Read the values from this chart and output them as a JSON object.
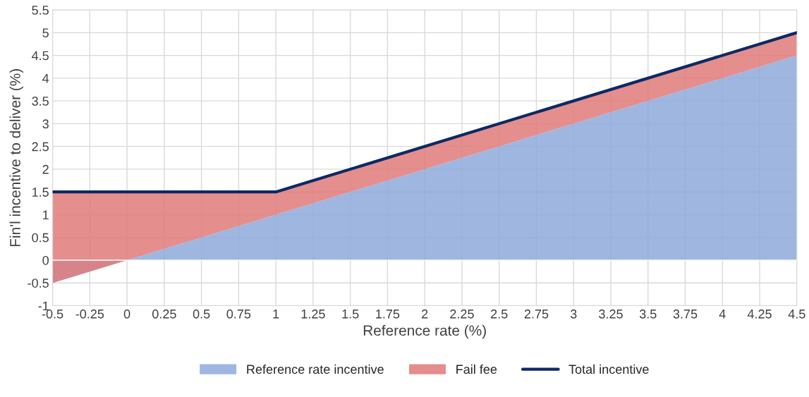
{
  "chart_data": {
    "type": "area",
    "stacked": true,
    "xlabel": "Reference rate (%)",
    "ylabel": "Fin'l incentive to deliver (%)",
    "x": [
      -0.5,
      0,
      1,
      4.5
    ],
    "series": [
      {
        "name": "Reference rate incentive",
        "color": "#8eaadb",
        "values": [
          -0.5,
          0,
          1,
          4.5
        ]
      },
      {
        "name": "Fail fee",
        "color": "#e07a7a",
        "values": [
          2,
          1.5,
          0.5,
          0.5
        ]
      },
      {
        "name": "Total incentive",
        "type": "line",
        "color": "#0d2a63",
        "values": [
          1.5,
          1.5,
          1.5,
          5
        ]
      }
    ],
    "xlim": [
      -0.5,
      4.5
    ],
    "xticks": [
      -0.5,
      -0.25,
      0,
      0.25,
      0.5,
      0.75,
      1,
      1.25,
      1.5,
      1.75,
      2,
      2.25,
      2.5,
      2.75,
      3,
      3.25,
      3.5,
      3.75,
      4,
      4.25,
      4.5
    ],
    "ylim": [
      -1,
      5.5
    ],
    "yticks": [
      -1,
      -0.5,
      0,
      0.5,
      1,
      1.5,
      2,
      2.5,
      3,
      3.5,
      4,
      4.5,
      5,
      5.5
    ],
    "grid": true,
    "legend": "bottom",
    "line_style": "solid",
    "marker": "none"
  }
}
